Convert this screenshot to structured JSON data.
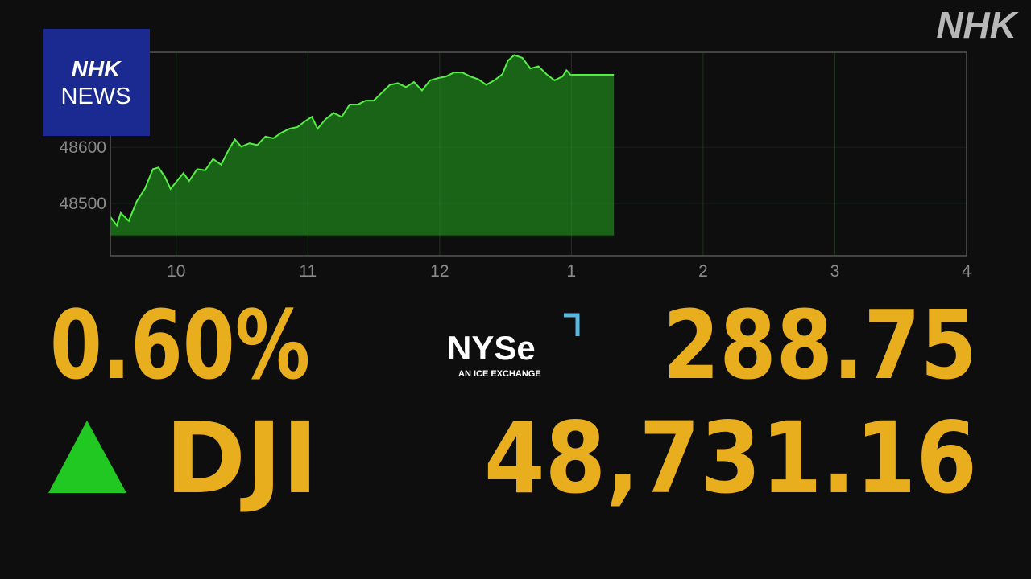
{
  "chart_data": {
    "type": "area",
    "x": [
      9.5,
      9.549,
      9.579,
      9.64,
      9.701,
      9.762,
      9.823,
      9.866,
      9.915,
      9.957,
      10.006,
      10.055,
      10.098,
      10.159,
      10.22,
      10.28,
      10.341,
      10.402,
      10.445,
      10.494,
      10.555,
      10.616,
      10.677,
      10.738,
      10.799,
      10.86,
      10.921,
      10.982,
      11.03,
      11.073,
      11.134,
      11.195,
      11.256,
      11.317,
      11.378,
      11.439,
      11.5,
      11.561,
      11.622,
      11.683,
      11.744,
      11.805,
      11.866,
      11.927,
      11.988,
      12.049,
      12.11,
      12.171,
      12.232,
      12.293,
      12.354,
      12.415,
      12.476,
      12.518,
      12.567,
      12.628,
      12.689,
      12.75,
      12.811,
      12.872,
      12.933,
      12.963,
      12.994,
      13.323
    ],
    "values": [
      48476,
      48461,
      48483,
      48469,
      48504,
      48526,
      48561,
      48564,
      48547,
      48526,
      48540,
      48554,
      48540,
      48561,
      48559,
      48579,
      48569,
      48597,
      48614,
      48601,
      48607,
      48604,
      48619,
      48616,
      48626,
      48633,
      48636,
      48647,
      48654,
      48633,
      48650,
      48661,
      48654,
      48676,
      48676,
      48683,
      48683,
      48697,
      48711,
      48714,
      48707,
      48716,
      48701,
      48719,
      48723,
      48726,
      48733,
      48733,
      48726,
      48721,
      48711,
      48719,
      48730,
      48754,
      48764,
      48759,
      48740,
      48744,
      48730,
      48719,
      48726,
      48737,
      48729,
      48729
    ],
    "baseline": 48442,
    "color": "#55ee44",
    "fill": "#1c6e1a",
    "xlim": [
      9.5,
      16
    ],
    "ylim": [
      48407,
      48769
    ],
    "xticks": [
      10,
      11,
      12,
      {
        "value": 13,
        "label": "1"
      },
      {
        "value": 14,
        "label": "2"
      },
      {
        "value": 15,
        "label": "3"
      },
      {
        "value": 16,
        "label": "4"
      }
    ],
    "yticks": [
      48500,
      48600
    ],
    "grid": true
  },
  "logo": {
    "line1": "NHK",
    "line2": "NEWS"
  },
  "watermark": "NHK",
  "exchange": {
    "name": "NYSe",
    "tagline": "AN ICE EXCHANGE"
  },
  "ticker": {
    "change_percent": "0.60%",
    "change": "288.75",
    "symbol": "DJI",
    "price": "48,731.16"
  }
}
